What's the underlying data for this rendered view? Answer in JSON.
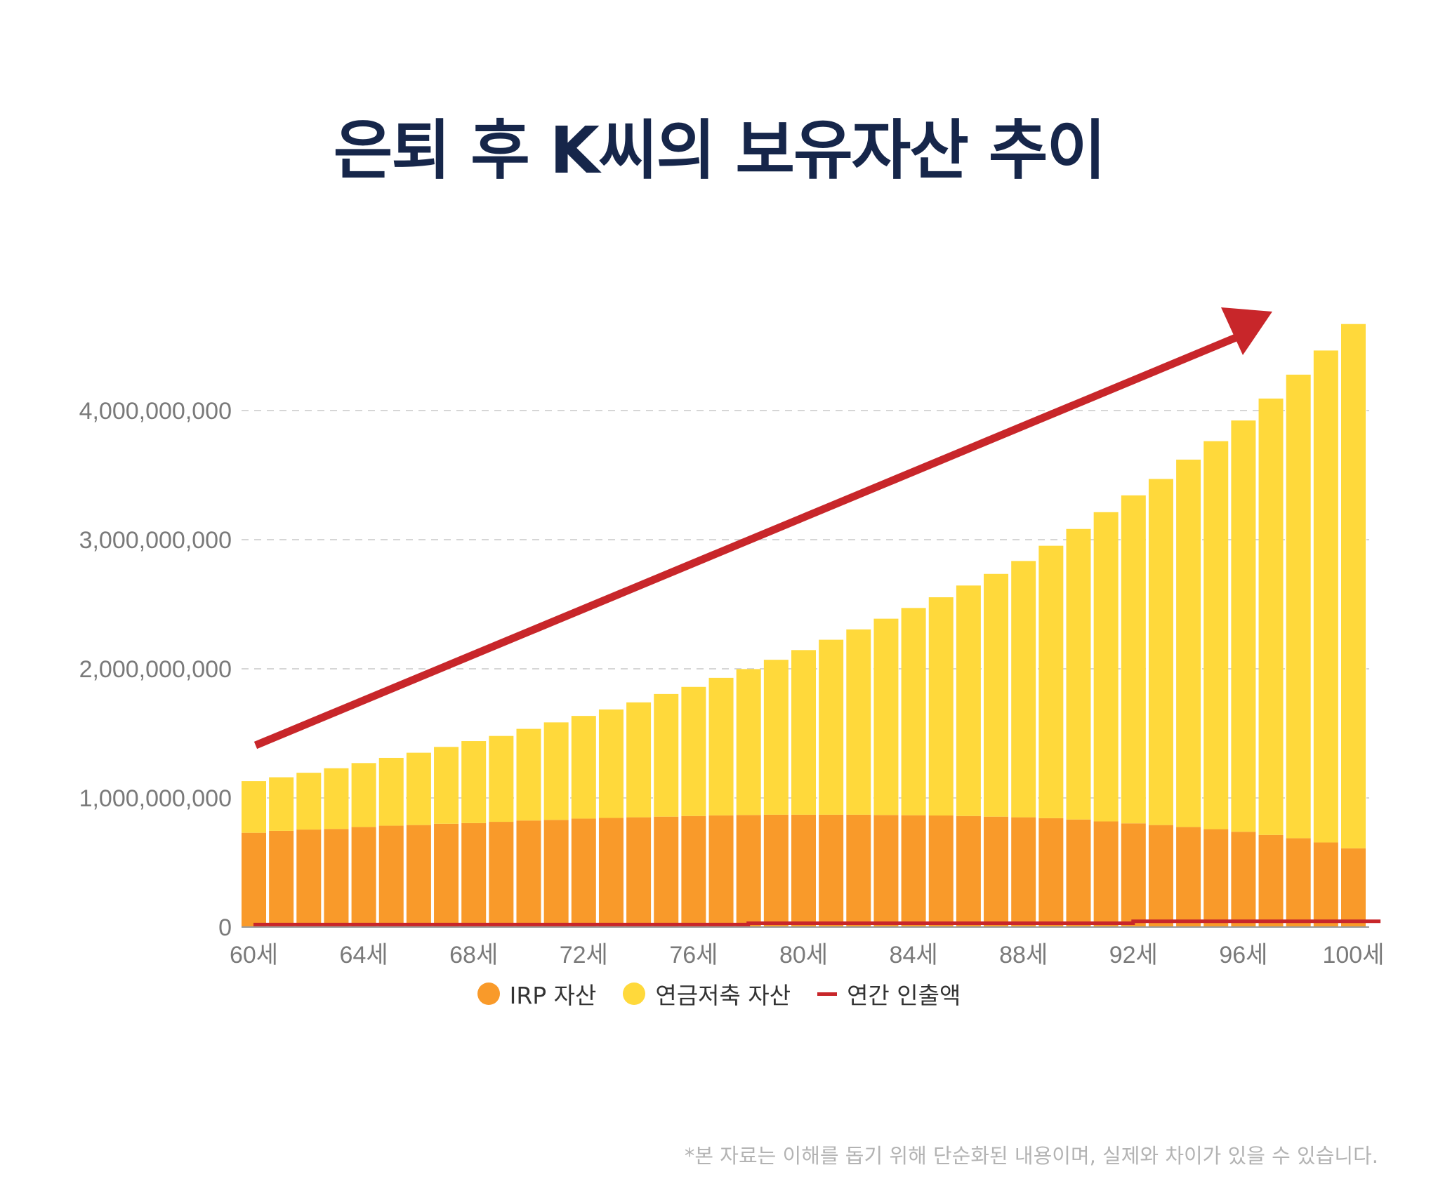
{
  "title": "은퇴 후 K씨의 보유자산 추이",
  "chart_data": {
    "type": "bar",
    "stacked": true,
    "categories": [
      "60세",
      "61세",
      "62세",
      "63세",
      "64세",
      "65세",
      "66세",
      "67세",
      "68세",
      "69세",
      "70세",
      "71세",
      "72세",
      "73세",
      "74세",
      "75세",
      "76세",
      "77세",
      "78세",
      "79세",
      "80세",
      "81세",
      "82세",
      "83세",
      "84세",
      "85세",
      "86세",
      "87세",
      "88세",
      "89세",
      "90세",
      "91세",
      "92세",
      "93세",
      "94세",
      "95세",
      "96세",
      "97세",
      "98세",
      "99세",
      "100세"
    ],
    "x_tick_labels": [
      "60세",
      "64세",
      "68세",
      "72세",
      "76세",
      "80세",
      "84세",
      "88세",
      "92세",
      "96세",
      "100세"
    ],
    "series": [
      {
        "name": "IRP 자산",
        "color": "#f99a2a",
        "type": "bar",
        "values": [
          730000000,
          745000000,
          755000000,
          760000000,
          775000000,
          785000000,
          790000000,
          800000000,
          805000000,
          815000000,
          825000000,
          830000000,
          840000000,
          845000000,
          850000000,
          855000000,
          860000000,
          865000000,
          868000000,
          870000000,
          870000000,
          870000000,
          870000000,
          868000000,
          866000000,
          864000000,
          860000000,
          855000000,
          850000000,
          843000000,
          833000000,
          818000000,
          803000000,
          790000000,
          775000000,
          758000000,
          738000000,
          713000000,
          688000000,
          655000000,
          610000000
        ]
      },
      {
        "name": "연금저축 자산",
        "color": "#ffd93b",
        "type": "bar",
        "values": [
          400000000,
          415000000,
          440000000,
          470000000,
          495000000,
          525000000,
          560000000,
          595000000,
          635000000,
          665000000,
          710000000,
          755000000,
          795000000,
          840000000,
          890000000,
          950000000,
          1000000000,
          1065000000,
          1130000000,
          1200000000,
          1275000000,
          1355000000,
          1435000000,
          1520000000,
          1605000000,
          1690000000,
          1785000000,
          1880000000,
          1985000000,
          2110000000,
          2250000000,
          2395000000,
          2540000000,
          2680000000,
          2845000000,
          3005000000,
          3185000000,
          3380000000,
          3590000000,
          3810000000,
          4060000000
        ]
      },
      {
        "name": "연간 인출액",
        "color": "#c8262a",
        "type": "line",
        "values": [
          20000000,
          20000000,
          20000000,
          20000000,
          20000000,
          20000000,
          20000000,
          20000000,
          20000000,
          20000000,
          20000000,
          20000000,
          20000000,
          20000000,
          20000000,
          20000000,
          20000000,
          20000000,
          30000000,
          30000000,
          30000000,
          30000000,
          30000000,
          30000000,
          30000000,
          30000000,
          30000000,
          30000000,
          30000000,
          30000000,
          30000000,
          30000000,
          45000000,
          45000000,
          45000000,
          45000000,
          45000000,
          45000000,
          45000000,
          45000000,
          45000000
        ]
      }
    ],
    "y_tick_labels": [
      "0",
      "1,000,000,000",
      "2,000,000,000",
      "3,000,000,000",
      "4,000,000,000"
    ],
    "ylim": [
      0,
      4700000000
    ],
    "yticks": [
      0,
      1000000000,
      2000000000,
      3000000000,
      4000000000
    ],
    "grid": true,
    "legend": "bottom-center",
    "annotation": "rising-trend-arrow",
    "xlabel": "",
    "ylabel": ""
  },
  "disclaimer": "*본 자료는 이해를 돕기 위해 단순화된 내용이며, 실제와 차이가 있을 수 있습니다."
}
